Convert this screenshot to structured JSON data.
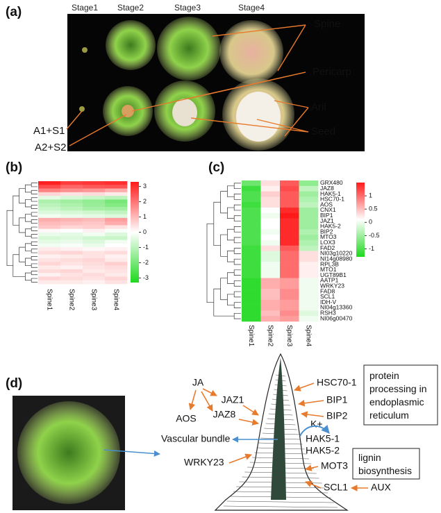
{
  "panel_a": {
    "label": "(a)",
    "stages": [
      "Stage1",
      "Stage2",
      "Stage3",
      "Stage4"
    ],
    "annotations": {
      "spine": "Spine",
      "pericarp": "Pericarp",
      "aril": "Aril",
      "seed": "Seed",
      "a1": "A1+S1",
      "a2": "A2+S2"
    }
  },
  "chart_data": [
    {
      "type": "heatmap",
      "label": "(b)",
      "categories": [
        "Spine1",
        "Spine2",
        "Spine3",
        "Spine4"
      ],
      "values": [
        [
          3.2,
          2.8,
          2.9,
          3.0
        ],
        [
          2.6,
          2.2,
          2.4,
          2.5
        ],
        [
          1.8,
          1.6,
          1.5,
          1.2
        ],
        [
          0.6,
          0.4,
          0.5,
          0.3
        ],
        [
          -0.4,
          -0.6,
          -0.8,
          -1.0
        ],
        [
          -1.2,
          -1.4,
          -1.6,
          -2.0
        ],
        [
          -1.0,
          -1.2,
          -1.5,
          -1.8
        ],
        [
          -0.8,
          -1.0,
          -1.3,
          -1.4
        ],
        [
          -0.5,
          -0.6,
          -0.7,
          -0.9
        ],
        [
          -0.2,
          -0.3,
          -0.4,
          -0.5
        ],
        [
          1.2,
          1.1,
          1.0,
          1.4
        ],
        [
          1.0,
          0.9,
          0.8,
          1.2
        ],
        [
          0.8,
          0.6,
          0.7,
          0.4
        ],
        [
          0.1,
          0.0,
          0.2,
          -0.1
        ],
        [
          -0.3,
          -0.4,
          -0.2,
          -0.5
        ],
        [
          -0.6,
          -0.5,
          -0.7,
          -0.8
        ],
        [
          -0.4,
          -0.3,
          -0.5,
          -0.2
        ],
        [
          -0.2,
          -0.1,
          -0.3,
          0.0
        ],
        [
          0.3,
          0.2,
          0.1,
          0.2
        ],
        [
          0.5,
          0.6,
          0.4,
          0.5
        ],
        [
          0.2,
          0.3,
          0.4,
          0.2
        ],
        [
          0.4,
          0.5,
          0.6,
          0.3
        ],
        [
          0.6,
          0.4,
          0.5,
          0.7
        ],
        [
          0.3,
          0.2,
          0.4,
          0.5
        ],
        [
          0.5,
          0.6,
          0.3,
          0.4
        ],
        [
          0.2,
          0.4,
          0.5,
          0.3
        ],
        [
          0.6,
          0.5,
          0.4,
          0.6
        ],
        [
          0.3,
          0.3,
          0.2,
          0.4
        ]
      ],
      "zlim": [
        -3.3,
        3.3
      ],
      "zticks": [
        3,
        2,
        1,
        0,
        -1,
        -2,
        -3
      ],
      "colors": [
        "#1ed81e",
        "#ffffff",
        "#ff1a1a"
      ]
    },
    {
      "type": "heatmap",
      "label": "(c)",
      "categories": [
        "Spine1",
        "Spine2",
        "Spine3",
        "Spine4"
      ],
      "rows": [
        "GRX480",
        "JAZ8",
        "HAK5-1",
        "HSC70-1",
        "AOS",
        "CNX1",
        "BIP1",
        "JAZ1",
        "HAK5-2",
        "BIP2",
        "MTO3",
        "LOX3",
        "FAD2",
        "NI03g10220",
        "NI14g08980",
        "RPL3B",
        "MTO1",
        "UGT89B1",
        "AATP1",
        "WRKY23",
        "FAD8",
        "SCL1",
        "IDH-V",
        "NI04g13360",
        "RSH3",
        "NI06g00470"
      ],
      "values": [
        [
          -0.8,
          0.3,
          1.1,
          -0.6
        ],
        [
          -1.1,
          0.2,
          1.2,
          -0.3
        ],
        [
          -1.0,
          0.4,
          1.1,
          -0.5
        ],
        [
          -1.0,
          0.3,
          1.1,
          -0.4
        ],
        [
          -1.1,
          0.3,
          1.1,
          -0.3
        ],
        [
          -1.0,
          0.1,
          1.4,
          -0.5
        ],
        [
          -1.0,
          0.0,
          1.5,
          -0.5
        ],
        [
          -1.0,
          0.1,
          1.4,
          -0.5
        ],
        [
          -1.0,
          0.1,
          1.4,
          -0.5
        ],
        [
          -1.0,
          0.0,
          1.4,
          -0.4
        ],
        [
          -1.0,
          0.1,
          1.4,
          -0.5
        ],
        [
          -1.0,
          0.0,
          1.4,
          -0.4
        ],
        [
          -1.1,
          0.3,
          1.1,
          -0.3
        ],
        [
          -1.1,
          -0.1,
          1.0,
          0.3
        ],
        [
          -1.1,
          -0.1,
          1.0,
          0.3
        ],
        [
          -1.1,
          0.0,
          1.0,
          0.2
        ],
        [
          -1.1,
          0.0,
          1.0,
          0.2
        ],
        [
          -1.1,
          0.0,
          1.0,
          0.2
        ],
        [
          -1.2,
          0.6,
          0.7,
          0.0
        ],
        [
          -1.2,
          0.6,
          0.7,
          0.0
        ],
        [
          -1.2,
          0.5,
          0.8,
          0.0
        ],
        [
          -1.2,
          0.5,
          0.8,
          0.0
        ],
        [
          -1.2,
          0.6,
          0.7,
          0.0
        ],
        [
          -1.2,
          0.6,
          0.7,
          0.0
        ],
        [
          -1.2,
          0.5,
          0.8,
          -0.1
        ],
        [
          -1.2,
          0.6,
          0.7,
          0.0
        ]
      ],
      "zlim": [
        -1.3,
        1.5
      ],
      "zticks": [
        1,
        0.5,
        0,
        -0.5,
        -1
      ],
      "colors": [
        "#1ed81e",
        "#ffffff",
        "#ff1a1a"
      ]
    }
  ],
  "panel_d": {
    "label": "(d)",
    "ja": "JA",
    "jaz1": "JAZ1",
    "jaz8": "JAZ8",
    "aos": "AOS",
    "vascular": "Vascular bundle",
    "wrky23": "WRKY23",
    "hsc70": "HSC70-1",
    "bip1": "BIP1",
    "bip2": "BIP2",
    "k": "K+",
    "hak51": "HAK5-1",
    "hak52": "HAK5-2",
    "mot3": "MOT3",
    "scl1": "SCL1",
    "aux": "AUX",
    "box1": [
      "protein",
      "processing in",
      "endoplasmic",
      "reticulum"
    ],
    "box2": [
      "lignin",
      "biosynthesis"
    ]
  }
}
